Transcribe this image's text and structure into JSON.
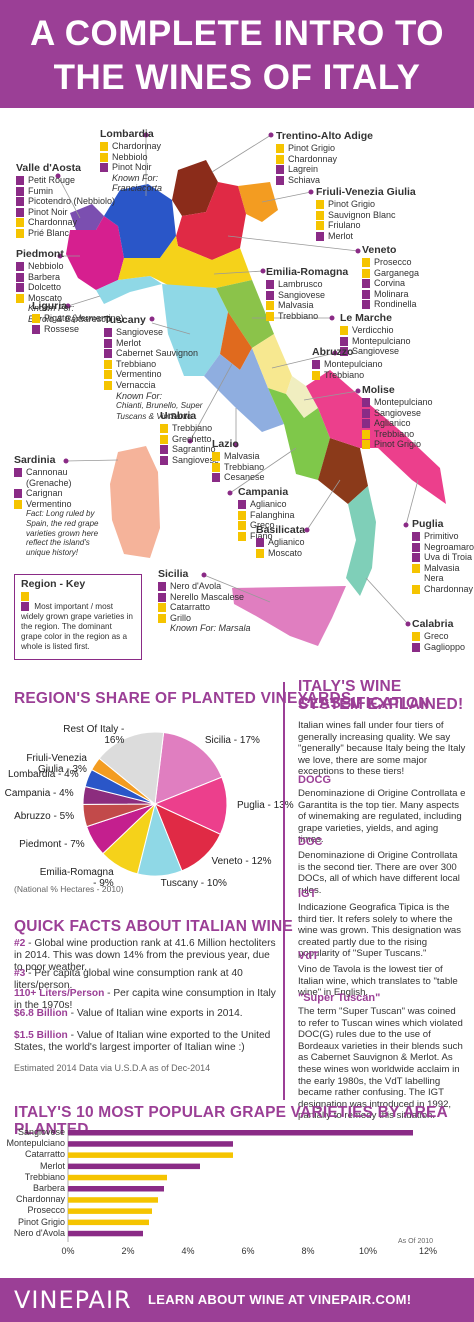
{
  "title": {
    "line1": "A COMPLETE INTRO TO",
    "line2": "THE WINES OF ITALY"
  },
  "colors": {
    "primary": "#f5c400",
    "secondary": "#8a2b86",
    "brand": "#9b3f96"
  },
  "regions": [
    {
      "name": "Lombardia",
      "primary": [
        "Chardonnay",
        "Nebbiolo"
      ],
      "secondary": [
        "Pinot Noir"
      ],
      "known": "Known For:",
      "known_text": "Franciacorta"
    },
    {
      "name": "Trentino-Alto Adige",
      "primary": [
        "Pinot Grigio",
        "Chardonnay"
      ],
      "secondary": [
        "Lagrein",
        "Schiava"
      ]
    },
    {
      "name": "Valle d'Aosta",
      "primary": [],
      "secondary": [
        "Petit Rouge",
        "Fumin",
        "Picotendro (Nebbiolo)",
        "Pinot Noir"
      ],
      "primary_after": [
        "Chardonnay",
        "Prié Blanc"
      ]
    },
    {
      "name": "Friuli-Venezia Giulia",
      "primary": [
        "Pinot Grigio",
        "Sauvignon Blanc",
        "Friulano"
      ],
      "secondary": [
        "Merlot"
      ]
    },
    {
      "name": "Piedmont",
      "secondary": [
        "Nebbiolo",
        "Barbera",
        "Dolcetto"
      ],
      "primary": [
        "Moscato"
      ],
      "known": "Known For:",
      "known_text": "Barolo & Barbaresco"
    },
    {
      "name": "Veneto",
      "primary": [
        "Prosecco",
        "Garganega"
      ],
      "secondary": [
        "Corvina",
        "Molinara",
        "Rondinella"
      ]
    },
    {
      "name": "Emilia-Romagna",
      "secondary": [
        "Lambrusco",
        "Sangiovese"
      ],
      "primary": [
        "Malvasia",
        "Trebbiano"
      ]
    },
    {
      "name": "Liguria",
      "primary": [
        "Pigato (Vermentino)"
      ],
      "secondary": [
        "Rossese"
      ]
    },
    {
      "name": "Le Marche",
      "primary": [
        "Verdicchio"
      ],
      "secondary": [
        "Montepulciano",
        "Sangiovese"
      ]
    },
    {
      "name": "Tuscany",
      "secondary": [
        "Sangiovese",
        "Merlot",
        "Cabernet Sauvignon"
      ],
      "primary": [
        "Trebbiano",
        "Vermentino",
        "Vernaccia"
      ],
      "known": "Known For:",
      "known_text": "Chianti, Brunello, Super Tuscans & Vin Santo"
    },
    {
      "name": "Abruzzo",
      "secondary": [
        "Montepulciano"
      ],
      "primary": [
        "Trebbiano"
      ]
    },
    {
      "name": "Molise",
      "secondary": [
        "Montepulciano",
        "Sangiovese",
        "Aglianico"
      ],
      "primary": [
        "Trebbiano",
        "Pinot Grigio"
      ]
    },
    {
      "name": "Umbria",
      "primary": [
        "Trebbiano",
        "Grechetto"
      ],
      "secondary": [
        "Sagrantino",
        "Sangiovese"
      ]
    },
    {
      "name": "Lazio",
      "primary": [
        "Malvasia",
        "Trebbiano"
      ],
      "secondary": [
        "Cesanese"
      ]
    },
    {
      "name": "Sardinia",
      "secondary": [
        "Cannonau (Grenache)",
        "Carignan"
      ],
      "primary": [
        "Vermentino"
      ],
      "fact": "Fact: Long ruled by Spain, the red grape varieties grown here reflect the island's unique history!"
    },
    {
      "name": "Campania",
      "secondary": [
        "Aglianico"
      ],
      "primary": [
        "Falanghina",
        "Greco",
        "Fiano"
      ]
    },
    {
      "name": "Basilicata",
      "secondary": [
        "Aglianico"
      ],
      "primary": [
        "Moscato"
      ]
    },
    {
      "name": "Puglia",
      "secondary": [
        "Primitivo",
        "Negroamaro",
        "Uva di Troia"
      ],
      "primary": [
        "Malvasia Nera",
        "Chardonnay"
      ]
    },
    {
      "name": "Sicilia",
      "secondary": [
        "Nero d'Avola",
        "Nerello Mascalese"
      ],
      "primary": [
        "Catarratto",
        "Grillo"
      ],
      "known": "Known For:",
      "known_text": "Marsala"
    },
    {
      "name": "Calabria",
      "primary": [
        "Greco"
      ],
      "secondary": [
        "Gaglioppo"
      ]
    }
  ],
  "key": {
    "title": "Region - Key",
    "text": "Most important / most widely grown grape varieties in the region.  The dominant grape color in the region as a whole is listed first."
  },
  "share": {
    "heading": "REGION'S SHARE OF PLANTED VINEYARDS",
    "note": "(National % Hectares - 2010)",
    "slices": [
      {
        "label": "Sicilia - 17%",
        "value": 17,
        "color": "#e07ec0"
      },
      {
        "label": "Puglia - 13%",
        "value": 13,
        "color": "#ec3f8c"
      },
      {
        "label": "Veneto - 12%",
        "value": 12,
        "color": "#e02a45"
      },
      {
        "label": "Tuscany - 10%",
        "value": 10,
        "color": "#8fd8e6"
      },
      {
        "label": "Emilia-Romagna - 9%",
        "value": 9,
        "color": "#f5d21a"
      },
      {
        "label": "Piedmont - 7%",
        "value": 7,
        "color": "#c41f8e"
      },
      {
        "label": "Abruzzo - 5%",
        "value": 5,
        "color": "#c24a4a"
      },
      {
        "label": "Campania - 4%",
        "value": 4,
        "color": "#8c2d7e"
      },
      {
        "label": "Lombardia - 4%",
        "value": 4,
        "color": "#2a56c8"
      },
      {
        "label": "Friuli-Venezia Giulia - 3%",
        "value": 3,
        "color": "#f39c21"
      },
      {
        "label": "Rest Of Italy - 16%",
        "value": 16,
        "color": "#dcdcdc"
      }
    ]
  },
  "quick": {
    "heading": "QUICK FACTS ABOUT ITALIAN WINE",
    "facts": [
      {
        "k": "#2",
        "t": " - Global wine production rank at 41.6 Million hectoliters in 2014. This was down 14% from the previous year, due to poor weather."
      },
      {
        "k": "#3",
        "t": " - Per capita global wine consumption rank at 40 liters/person."
      },
      {
        "k": "110+ Liters/Person",
        "t": " - Per capita wine consumption in Italy in the 1970s!"
      },
      {
        "k": "$6.8 Billion",
        "t": " - Value of Italian wine exports in 2014."
      },
      {
        "k": "$1.5 Billion",
        "t": " - Value of Italian wine exported to the United States, the world's largest importer of Italian wine :)"
      }
    ],
    "source": "Estimated 2014 Data via U.S.D.A as of Dec-2014"
  },
  "classification": {
    "heading1": "ITALY'S WINE CLASSIFICATION",
    "heading2": "SYSTEM EXPLAINED!",
    "intro": "Italian wines fall under four tiers of generally increasing quality.  We say \"generally\" because Italy being the Italy we love, there are some major exceptions to these tiers!",
    "tiers": [
      {
        "name": "DOCG",
        "text": "Denominazione di Origine Controllata e Garantita is the top tier.  Many aspects of winemaking are regulated, including grape varieties, yields, and aging times."
      },
      {
        "name": "DOC",
        "text": "Denominazione di Origine Controllata is the second tier.  There are over 300 DOCs, all of which have different local rules."
      },
      {
        "name": "IGT",
        "text": "Indicazione Geografica Tipica is the third tier. It refers solely to where the wine was grown. This designation was created partly due to the rising popularity of  \"Super Tuscans.\""
      },
      {
        "name": "VdT",
        "text": "Vino de Tavola is the lowest tier of Italian wine, which translates to \"table wine\" in English."
      },
      {
        "name": "\"Super Tuscan\"",
        "text": "The term \"Super Tuscan\" was coined to refer to Tuscan wines which violated DOC(G) rules due to the use of Bordeaux varieties in their blends such as Cabernet Sauvignon & Merlot. As these wines won worldwide acclaim in the early 1980s, the VdT labelling became rather confusing.  The IGT designation was introduced in 1992,  partially to remedy this situation."
      }
    ]
  },
  "grapes": {
    "heading": "ITALY'S 10 MOST POPULAR GRAPE VARIETIES BY AREA PLANTED",
    "note": "As Of 2010",
    "ticks": [
      "0%",
      "2%",
      "4%",
      "6%",
      "8%",
      "10%",
      "12%"
    ],
    "chart_data": {
      "type": "bar",
      "orientation": "horizontal",
      "categories": [
        "Sangiovese",
        "Montepulciano",
        "Catarratto",
        "Merlot",
        "Trebbiano",
        "Barbera",
        "Chardonnay",
        "Prosecco",
        "Pinot Grigio",
        "Nero d'Avola"
      ],
      "values": [
        11.5,
        5.5,
        5.5,
        4.4,
        3.3,
        3.2,
        3.0,
        2.8,
        2.7,
        2.5
      ],
      "colors": [
        "#8a2b86",
        "#8a2b86",
        "#f5c400",
        "#8a2b86",
        "#f5c400",
        "#8a2b86",
        "#f5c400",
        "#f5c400",
        "#f5c400",
        "#8a2b86"
      ],
      "xlim": [
        0,
        12
      ]
    }
  },
  "footer": {
    "logo": "VINEPAIR",
    "cta": "LEARN ABOUT WINE AT VINEPAIR.COM!"
  }
}
